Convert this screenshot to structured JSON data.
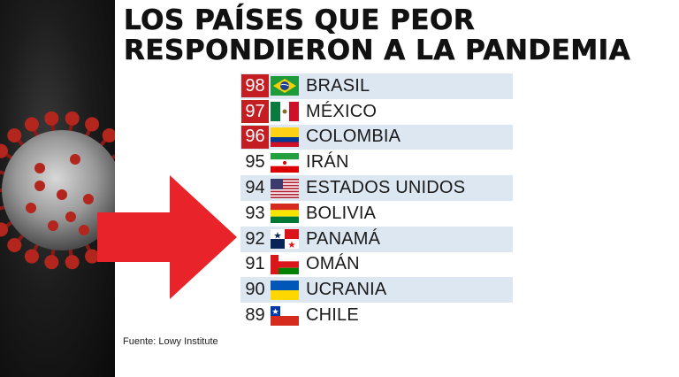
{
  "title": {
    "line1": "LOS PAÍSES QUE PEOR",
    "line2": "RESPONDIERON A LA PANDEMIA"
  },
  "ranking": [
    {
      "rank": "98",
      "country": "BRASIL",
      "flag": "brazil-flag",
      "highlight": true
    },
    {
      "rank": "97",
      "country": "MÉXICO",
      "flag": "mexico-flag",
      "highlight": true
    },
    {
      "rank": "96",
      "country": "COLOMBIA",
      "flag": "colombia-flag",
      "highlight": true
    },
    {
      "rank": "95",
      "country": "IRÁN",
      "flag": "iran-flag",
      "highlight": false
    },
    {
      "rank": "94",
      "country": "ESTADOS UNIDOS",
      "flag": "usa-flag",
      "highlight": false
    },
    {
      "rank": "93",
      "country": "BOLIVIA",
      "flag": "bolivia-flag",
      "highlight": false
    },
    {
      "rank": "92",
      "country": "PANAMÁ",
      "flag": "panama-flag",
      "highlight": false
    },
    {
      "rank": "91",
      "country": "OMÁN",
      "flag": "oman-flag",
      "highlight": false
    },
    {
      "rank": "90",
      "country": "UCRANIA",
      "flag": "ukraine-flag",
      "highlight": false
    },
    {
      "rank": "89",
      "country": "CHILE",
      "flag": "chile-flag",
      "highlight": false
    }
  ],
  "source": "Fuente: Lowy Institute",
  "colors": {
    "highlight": "#c41e22",
    "row_alt": "#dde7f2",
    "arrow": "#e8232a"
  }
}
